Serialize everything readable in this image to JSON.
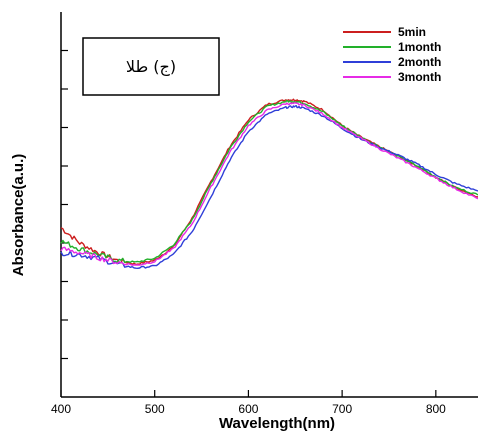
{
  "chart_data": {
    "type": "line",
    "xlabel": "Wavelength(nm)",
    "ylabel": "Absorbance(a.u.)",
    "xlim": [
      400,
      845
    ],
    "xticks": [
      400,
      500,
      600,
      700,
      800
    ],
    "ylim": [
      0,
      10
    ],
    "yticks": [
      1,
      2,
      3,
      4,
      5,
      6,
      7,
      8,
      9
    ],
    "annotation": "(ج) طلا",
    "legend_position": "top-right",
    "series": [
      {
        "name": "5min",
        "color": "#cc1f1f",
        "x": [
          400,
          420,
          440,
          460,
          480,
          500,
          520,
          540,
          560,
          580,
          600,
          620,
          640,
          650,
          660,
          680,
          700,
          720,
          740,
          760,
          780,
          800,
          820,
          845
        ],
        "y": [
          4.4,
          4.0,
          3.75,
          3.55,
          3.45,
          3.55,
          3.9,
          4.65,
          5.6,
          6.5,
          7.2,
          7.6,
          7.72,
          7.72,
          7.68,
          7.45,
          7.05,
          6.75,
          6.5,
          6.25,
          6.0,
          5.7,
          5.45,
          5.2
        ]
      },
      {
        "name": "1month",
        "color": "#22b02a",
        "x": [
          400,
          420,
          440,
          460,
          480,
          500,
          520,
          540,
          560,
          580,
          600,
          620,
          640,
          650,
          660,
          680,
          700,
          720,
          740,
          760,
          780,
          800,
          820,
          845
        ],
        "y": [
          4.05,
          3.85,
          3.7,
          3.55,
          3.5,
          3.6,
          3.95,
          4.6,
          5.55,
          6.45,
          7.15,
          7.55,
          7.68,
          7.68,
          7.63,
          7.4,
          7.05,
          6.75,
          6.5,
          6.25,
          6.0,
          5.72,
          5.45,
          5.25
        ]
      },
      {
        "name": "2month",
        "color": "#2f3fd8",
        "x": [
          400,
          420,
          440,
          460,
          480,
          500,
          520,
          540,
          560,
          580,
          600,
          620,
          640,
          650,
          660,
          680,
          700,
          720,
          740,
          760,
          780,
          800,
          820,
          845
        ],
        "y": [
          3.75,
          3.7,
          3.6,
          3.45,
          3.35,
          3.4,
          3.7,
          4.3,
          5.2,
          6.15,
          6.9,
          7.35,
          7.52,
          7.55,
          7.5,
          7.3,
          6.98,
          6.7,
          6.48,
          6.28,
          6.05,
          5.78,
          5.55,
          5.35
        ]
      },
      {
        "name": "3month",
        "color": "#e62be6",
        "x": [
          400,
          420,
          440,
          460,
          480,
          500,
          520,
          540,
          560,
          580,
          600,
          620,
          640,
          650,
          660,
          680,
          700,
          720,
          740,
          760,
          780,
          800,
          820,
          845
        ],
        "y": [
          3.85,
          3.75,
          3.62,
          3.5,
          3.42,
          3.52,
          3.85,
          4.5,
          5.45,
          6.35,
          7.05,
          7.45,
          7.62,
          7.62,
          7.58,
          7.35,
          7.0,
          6.72,
          6.45,
          6.2,
          5.95,
          5.68,
          5.42,
          5.15
        ]
      }
    ]
  }
}
